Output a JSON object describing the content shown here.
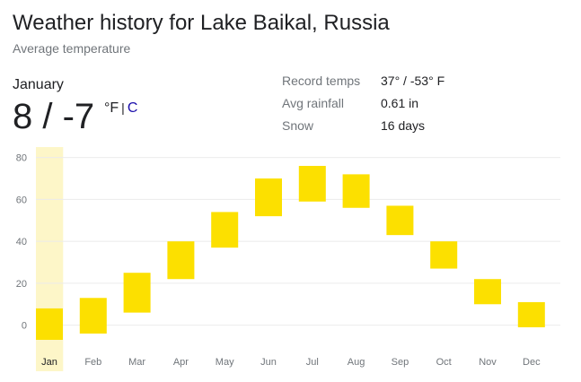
{
  "header": {
    "title": "Weather history for Lake Baikal, Russia",
    "subtitle": "Average temperature"
  },
  "selected": {
    "month": "January",
    "temp_display": "8 / -7",
    "unit_f": "°F",
    "unit_sep": "|",
    "unit_c": "C"
  },
  "stats": [
    {
      "label": "Record temps",
      "value": "37° / -53° F"
    },
    {
      "label": "Avg rainfall",
      "value": "0.61 in"
    },
    {
      "label": "Snow",
      "value": "16 days"
    }
  ],
  "chart_data": {
    "type": "bar",
    "categories": [
      "Jan",
      "Feb",
      "Mar",
      "Apr",
      "May",
      "Jun",
      "Jul",
      "Aug",
      "Sep",
      "Oct",
      "Nov",
      "Dec"
    ],
    "series": [
      {
        "low": [
          -7,
          -4,
          6,
          22,
          37,
          52,
          59,
          56,
          43,
          27,
          10,
          -1
        ],
        "high": [
          8,
          13,
          25,
          40,
          54,
          70,
          76,
          72,
          57,
          40,
          22,
          11
        ]
      }
    ],
    "yticks": [
      0,
      20,
      40,
      60,
      80
    ],
    "ylim": [
      -10,
      85
    ],
    "selected_index": 0,
    "bar_color": "#fce000",
    "highlight_color": "#fdf6c8",
    "grid": true
  }
}
